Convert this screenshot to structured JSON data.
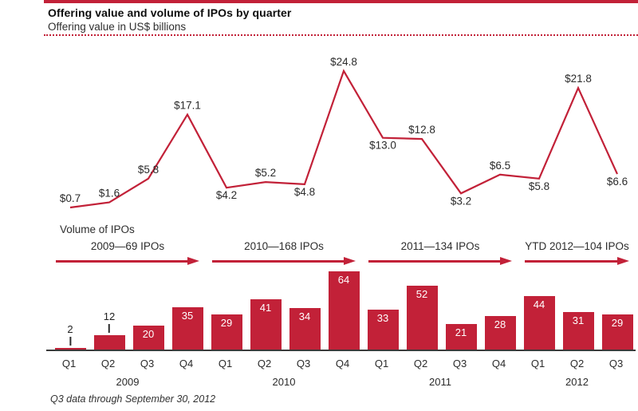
{
  "header": {
    "title": "Offering value and volume of IPOs by quarter",
    "subtitle": "Offering value in US$ billions"
  },
  "volume_section": {
    "label": "Volume of IPOs"
  },
  "footer": {
    "note": "Q3 data through September 30, 2012"
  },
  "colors": {
    "brand_red": "#c22138",
    "axis": "#3b3b3b",
    "text_dark": "#2b2b2b",
    "bar_label_white": "#ffffff"
  },
  "chart_data": [
    {
      "type": "line",
      "title": "Offering value and volume of IPOs by quarter",
      "ylabel": "Offering value in US$ billions",
      "x": [
        "2009 Q1",
        "2009 Q2",
        "2009 Q3",
        "2009 Q4",
        "2010 Q1",
        "2010 Q2",
        "2010 Q3",
        "2010 Q4",
        "2011 Q1",
        "2011 Q2",
        "2011 Q3",
        "2011 Q4",
        "2012 Q1",
        "2012 Q2",
        "2012 Q3"
      ],
      "values": [
        0.7,
        1.6,
        5.8,
        17.1,
        4.2,
        5.2,
        4.8,
        24.8,
        13.0,
        12.8,
        3.2,
        6.5,
        5.8,
        21.8,
        6.6
      ],
      "point_labels": [
        "$0.7",
        "$1.6",
        "$5.8",
        "$17.1",
        "$4.2",
        "$5.2",
        "$4.8",
        "$24.8",
        "$13.0",
        "$12.8",
        "$3.2",
        "$6.5",
        "$5.8",
        "$21.8",
        "$6.6"
      ],
      "label_positions": [
        "above",
        "above",
        "above",
        "above",
        "below",
        "above",
        "below",
        "above",
        "below",
        "above",
        "below",
        "above",
        "below",
        "above",
        "below"
      ],
      "ylim": [
        0,
        26
      ],
      "grid": false,
      "legend": "none",
      "line_color": "#c22138"
    },
    {
      "type": "bar",
      "title": "Volume of IPOs",
      "categories": [
        "Q1",
        "Q2",
        "Q3",
        "Q4",
        "Q1",
        "Q2",
        "Q3",
        "Q4",
        "Q1",
        "Q2",
        "Q3",
        "Q4",
        "Q1",
        "Q2",
        "Q3"
      ],
      "values": [
        2,
        12,
        20,
        35,
        29,
        41,
        34,
        64,
        33,
        52,
        21,
        28,
        44,
        31,
        29
      ],
      "ylim": [
        0,
        66
      ],
      "bar_color": "#c22138",
      "year_groups": [
        {
          "year": "2009",
          "annotation": "2009—69 IPOs",
          "quarters": 4
        },
        {
          "year": "2010",
          "annotation": "2010—168 IPOs",
          "quarters": 4
        },
        {
          "year": "2011",
          "annotation": "2011—134 IPOs",
          "quarters": 4
        },
        {
          "year": "2012",
          "annotation": "YTD 2012—104 IPOs",
          "quarters": 3
        }
      ]
    }
  ]
}
